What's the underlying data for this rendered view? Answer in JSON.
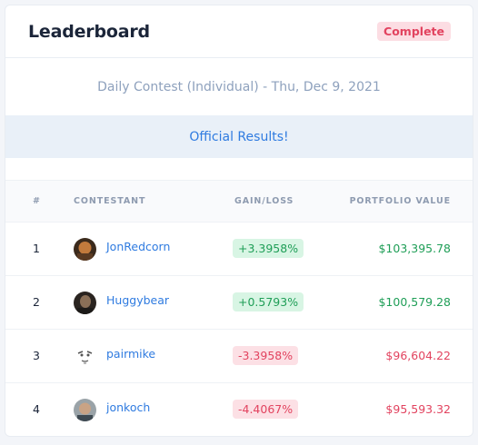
{
  "header": {
    "title": "Leaderboard",
    "status": "Complete"
  },
  "contest": {
    "title": "Daily Contest (Individual) - Thu, Dec 9, 2021",
    "banner": "Official Results!"
  },
  "table": {
    "columns": {
      "rank": "#",
      "contestant": "CONTESTANT",
      "gain": "GAIN/LOSS",
      "value": "PORTFOLIO VALUE"
    },
    "rows": [
      {
        "rank": "1",
        "name": "JonRedcorn",
        "gain": "+3.3958%",
        "value": "$103,395.78",
        "trend": "positive",
        "avatar": "avatar-photo"
      },
      {
        "rank": "2",
        "name": "Huggybear",
        "gain": "+0.5793%",
        "value": "$100,579.28",
        "trend": "positive",
        "avatar": "avatar-photo"
      },
      {
        "rank": "3",
        "name": "pairmike",
        "gain": "-3.3958%",
        "value": "$96,604.22",
        "trend": "negative",
        "avatar": "avatar-sketch"
      },
      {
        "rank": "4",
        "name": "jonkoch",
        "gain": "-4.4067%",
        "value": "$95,593.32",
        "trend": "negative",
        "avatar": "avatar-photo"
      }
    ]
  },
  "colors": {
    "positive": "#1f9e57",
    "negative": "#e2435f",
    "accent": "#2f7be0"
  }
}
